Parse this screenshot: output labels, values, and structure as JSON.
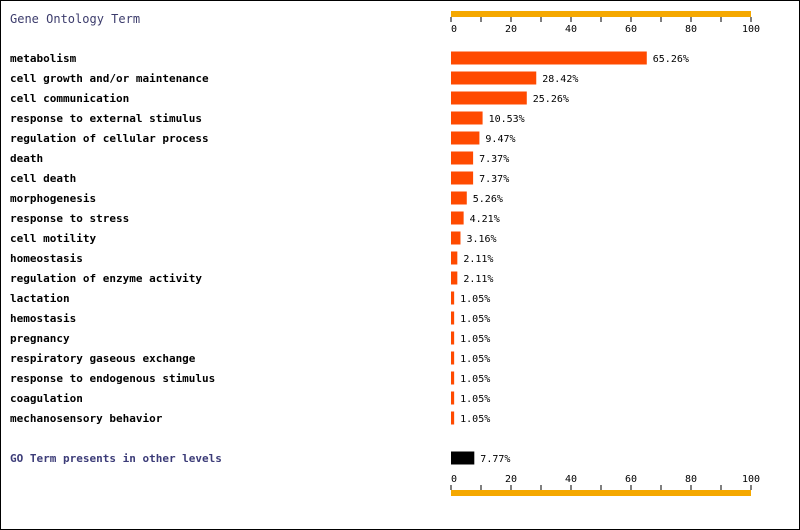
{
  "chart_data": {
    "type": "bar",
    "orientation": "horizontal",
    "title": "Gene Ontology Term",
    "categories": [
      "metabolism",
      "cell growth and/or maintenance",
      "cell communication",
      "response to external stimulus",
      "regulation of cellular process",
      "death",
      "cell death",
      "morphogenesis",
      "response to stress",
      "cell motility",
      "homeostasis",
      "regulation of enzyme activity",
      "lactation",
      "hemostasis",
      "pregnancy",
      "respiratory gaseous exchange",
      "response to endogenous stimulus",
      "coagulation",
      "mechanosensory behavior"
    ],
    "values": [
      65.26,
      28.42,
      25.26,
      10.53,
      9.47,
      7.37,
      7.37,
      5.26,
      4.21,
      3.16,
      2.11,
      2.11,
      1.05,
      1.05,
      1.05,
      1.05,
      1.05,
      1.05,
      1.05
    ],
    "value_labels": [
      "65.26%",
      "28.42%",
      "25.26%",
      "10.53%",
      "9.47%",
      "7.37%",
      "7.37%",
      "5.26%",
      "4.21%",
      "3.16%",
      "2.11%",
      "2.11%",
      "1.05%",
      "1.05%",
      "1.05%",
      "1.05%",
      "1.05%",
      "1.05%",
      "1.05%"
    ],
    "other": {
      "label": "GO Term presents in other levels",
      "value": 7.77,
      "value_label": "7.77%"
    },
    "xlim": [
      0,
      100
    ],
    "ticks": [
      "0",
      "20",
      "40",
      "60",
      "80",
      "100"
    ],
    "tick_values": [
      0,
      20,
      40,
      60,
      80,
      100
    ],
    "colors": {
      "bar": "#ff4a00",
      "other_bar": "#000000",
      "axis": "#f5a800",
      "title": "#3c3c6c",
      "other_label": "#3c3c78",
      "text": "#000000"
    }
  }
}
